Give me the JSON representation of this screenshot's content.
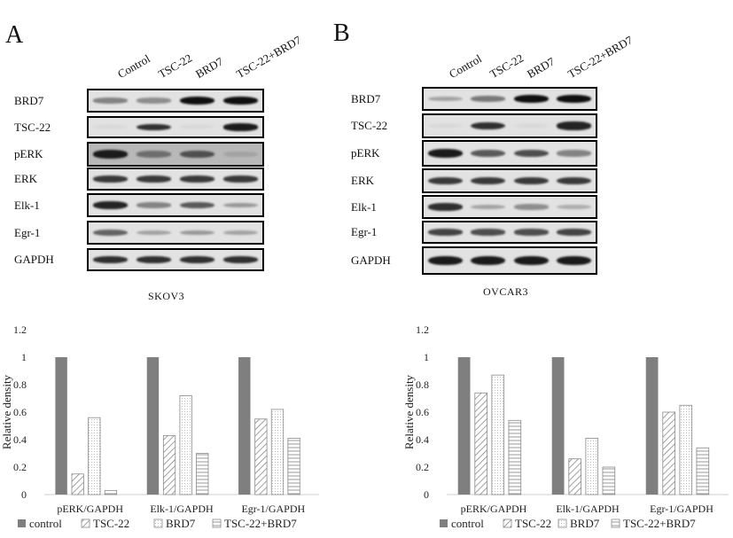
{
  "panels": [
    {
      "letter": "A",
      "cell_line": "SKOV3",
      "lanes": [
        "Control",
        "TSC-22",
        "BRD7",
        "TSC-22+BRD7"
      ],
      "rows": [
        "BRD7",
        "TSC-22",
        "pERK",
        "ERK",
        "Elk-1",
        "Egr-1",
        "GAPDH"
      ],
      "band_intensity": [
        [
          0.45,
          0.4,
          1.0,
          1.0
        ],
        [
          0.05,
          0.85,
          0.05,
          0.95
        ],
        [
          0.95,
          0.55,
          0.7,
          0.3
        ],
        [
          0.8,
          0.8,
          0.8,
          0.8
        ],
        [
          0.9,
          0.45,
          0.65,
          0.35
        ],
        [
          0.6,
          0.3,
          0.35,
          0.3
        ],
        [
          0.85,
          0.85,
          0.85,
          0.85
        ]
      ]
    },
    {
      "letter": "B",
      "cell_line": "OVCAR3",
      "lanes": [
        "Control",
        "TSC-22",
        "BRD7",
        "TSC-22+BRD7"
      ],
      "rows": [
        "BRD7",
        "TSC-22",
        "pERK",
        "ERK",
        "Elk-1",
        "Egr-1",
        "GAPDH"
      ],
      "band_intensity": [
        [
          0.3,
          0.5,
          1.0,
          1.0
        ],
        [
          0.05,
          0.85,
          0.05,
          0.9
        ],
        [
          0.95,
          0.65,
          0.7,
          0.45
        ],
        [
          0.8,
          0.8,
          0.8,
          0.8
        ],
        [
          0.85,
          0.3,
          0.4,
          0.25
        ],
        [
          0.75,
          0.7,
          0.7,
          0.75
        ],
        [
          0.95,
          0.95,
          0.95,
          0.95
        ]
      ]
    }
  ],
  "chart_data": [
    {
      "type": "bar",
      "title": "",
      "xlabel": "",
      "ylabel": "Relative density",
      "ylim": [
        0,
        1.2
      ],
      "yticks": [
        "0",
        "0.2",
        "0.4",
        "0.6",
        "0.8",
        "1",
        "1.2"
      ],
      "grid": false,
      "legend_position": "bottom",
      "categories": [
        "pERK/GAPDH",
        "Elk-1/GAPDH",
        "Egr-1/GAPDH"
      ],
      "series": [
        {
          "name": "control",
          "values": [
            1.0,
            1.0,
            1.0
          ],
          "pattern": "solid-gray"
        },
        {
          "name": "TSC-22",
          "values": [
            0.15,
            0.43,
            0.55
          ],
          "pattern": "diagonal"
        },
        {
          "name": "BRD7",
          "values": [
            0.56,
            0.72,
            0.62
          ],
          "pattern": "dots"
        },
        {
          "name": "TSC-22+BRD7",
          "values": [
            0.03,
            0.3,
            0.41
          ],
          "pattern": "horizontal"
        }
      ]
    },
    {
      "type": "bar",
      "title": "",
      "xlabel": "",
      "ylabel": "Relative density",
      "ylim": [
        0,
        1.2
      ],
      "yticks": [
        "0",
        "0.2",
        "0.4",
        "0.6",
        "0.8",
        "1",
        "1.2"
      ],
      "grid": false,
      "legend_position": "bottom",
      "categories": [
        "pERK/GAPDH",
        "Elk-1/GAPDH",
        "Egr-1/GAPDH"
      ],
      "series": [
        {
          "name": "control",
          "values": [
            1.0,
            1.0,
            1.0
          ],
          "pattern": "solid-gray"
        },
        {
          "name": "TSC-22",
          "values": [
            0.74,
            0.26,
            0.6
          ],
          "pattern": "diagonal"
        },
        {
          "name": "BRD7",
          "values": [
            0.87,
            0.41,
            0.65
          ],
          "pattern": "dots"
        },
        {
          "name": "TSC-22+BRD7",
          "values": [
            0.54,
            0.2,
            0.34
          ],
          "pattern": "horizontal"
        }
      ]
    }
  ]
}
